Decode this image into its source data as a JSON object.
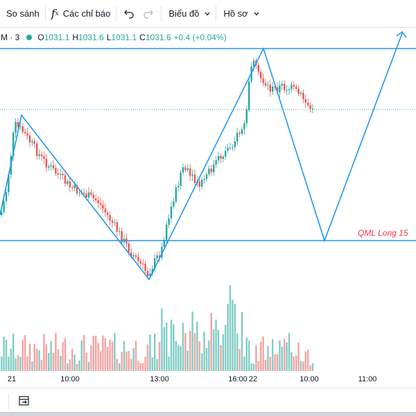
{
  "toolbar": {
    "compare_label": "So sánh",
    "indicators_label": "Các chỉ báo",
    "chart_label": "Biểu đồ",
    "profile_label": "Hồ sơ"
  },
  "legend": {
    "interval": "M · 3",
    "o_key": "O",
    "o_val": "1031.1",
    "h_key": "H",
    "h_val": "1031.6",
    "l_key": "L",
    "l_val": "1031.1",
    "c_key": "C",
    "c_val": "1031.6",
    "change": "+0.4 (+0.04%)"
  },
  "annotation": {
    "qml_label": "QML Long 15"
  },
  "time_axis": {
    "ticks": [
      "21",
      "10:00",
      "13:00",
      "16:00",
      "22",
      "10:00",
      "11:00"
    ]
  },
  "colors": {
    "up": "#26a69a",
    "down": "#ef5350",
    "drawing": "#2196f3",
    "annotation": "#f23645"
  },
  "chart_data": {
    "type": "candlestick",
    "open": 1031.1,
    "high": 1031.6,
    "low": 1031.1,
    "close": 1031.6,
    "change": 0.4,
    "change_pct": 0.04
  }
}
